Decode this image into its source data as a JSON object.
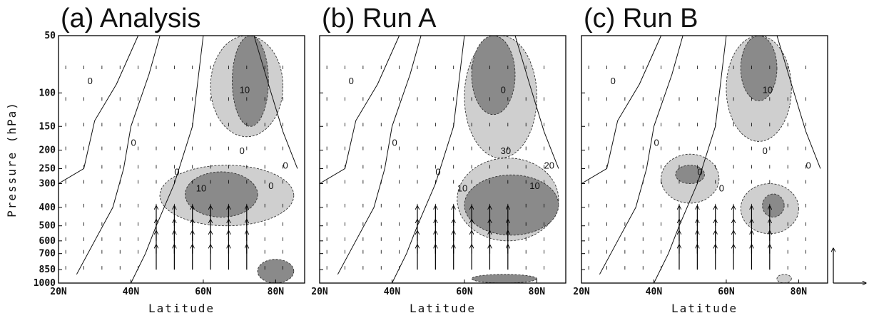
{
  "chart_data": [
    {
      "type": "contour",
      "title": "(a) Analysis",
      "xlabel": "Latitude",
      "ylabel": "Pressure (hPa)",
      "xlim": [
        20,
        88
      ],
      "ylim": [
        1000,
        50
      ],
      "yscale": "log",
      "x_ticks": [
        "20N",
        "40N",
        "60N",
        "80N"
      ],
      "y_ticks": [
        "50",
        "100",
        "150",
        "200",
        "250",
        "300",
        "400",
        "500",
        "600",
        "700",
        "850",
        "1000"
      ],
      "contour_labels": [
        "0",
        "0",
        "0",
        "10",
        "10",
        "0",
        "0",
        "0"
      ],
      "shaded_regions": [
        {
          "lat": [
            68,
            78
          ],
          "p": [
            50,
            150
          ],
          "level": "high"
        },
        {
          "lat": [
            62,
            82
          ],
          "p": [
            50,
            170
          ],
          "level": "low"
        },
        {
          "lat": [
            55,
            75
          ],
          "p": [
            260,
            450
          ],
          "level": "high"
        },
        {
          "lat": [
            48,
            85
          ],
          "p": [
            240,
            500
          ],
          "level": "low"
        },
        {
          "lat": [
            75,
            85
          ],
          "p": [
            750,
            1000
          ],
          "level": "high"
        }
      ]
    },
    {
      "type": "contour",
      "title": "(b) Run A",
      "xlabel": "Latitude",
      "ylabel": "",
      "xlim": [
        20,
        88
      ],
      "ylim": [
        1000,
        50
      ],
      "yscale": "log",
      "x_ticks": [
        "20N",
        "40N",
        "60N",
        "80N"
      ],
      "y_ticks": [],
      "contour_labels": [
        "0",
        "0",
        "0",
        "0",
        "10",
        "30",
        "20",
        "10"
      ],
      "shaded_regions": [
        {
          "lat": [
            62,
            74
          ],
          "p": [
            50,
            130
          ],
          "level": "high"
        },
        {
          "lat": [
            60,
            80
          ],
          "p": [
            50,
            220
          ],
          "level": "low"
        },
        {
          "lat": [
            60,
            86
          ],
          "p": [
            270,
            560
          ],
          "level": "high"
        },
        {
          "lat": [
            58,
            86
          ],
          "p": [
            220,
            600
          ],
          "level": "low"
        },
        {
          "lat": [
            62,
            80
          ],
          "p": [
            900,
            1000
          ],
          "level": "high"
        }
      ]
    },
    {
      "type": "contour",
      "title": "(c) Run B",
      "xlabel": "Latitude",
      "ylabel": "",
      "xlim": [
        20,
        88
      ],
      "ylim": [
        1000,
        50
      ],
      "yscale": "log",
      "x_ticks": [
        "20N",
        "40N",
        "60N",
        "80N"
      ],
      "y_ticks": [],
      "contour_labels": [
        "0",
        "0",
        "0",
        "10",
        "0",
        "0",
        "0"
      ],
      "shaded_regions": [
        {
          "lat": [
            64,
            74
          ],
          "p": [
            50,
            110
          ],
          "level": "high"
        },
        {
          "lat": [
            60,
            78
          ],
          "p": [
            50,
            180
          ],
          "level": "low"
        },
        {
          "lat": [
            46,
            54
          ],
          "p": [
            240,
            300
          ],
          "level": "high"
        },
        {
          "lat": [
            42,
            58
          ],
          "p": [
            210,
            380
          ],
          "level": "low"
        },
        {
          "lat": [
            70,
            76
          ],
          "p": [
            340,
            450
          ],
          "level": "high"
        },
        {
          "lat": [
            64,
            80
          ],
          "p": [
            300,
            550
          ],
          "level": "low"
        },
        {
          "lat": [
            74,
            78
          ],
          "p": [
            900,
            1000
          ],
          "level": "low"
        }
      ]
    }
  ],
  "legend": {
    "vector_reference": "reference arrows (vertical and horizontal)"
  }
}
